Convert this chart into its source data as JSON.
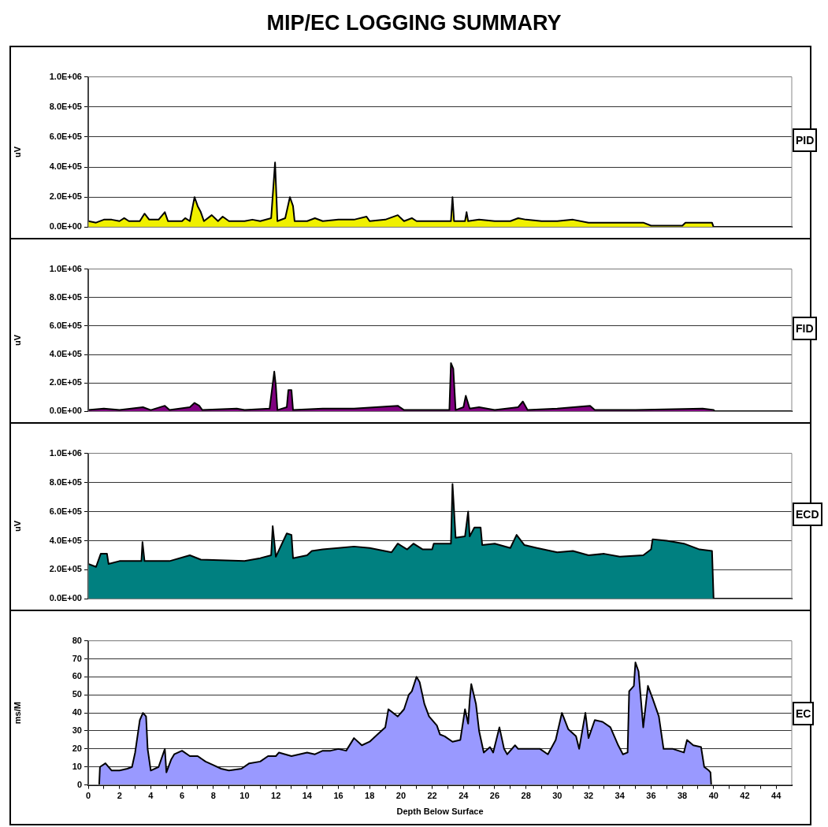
{
  "chart_data": [
    {
      "type": "area",
      "title": "MIP/EC LOGGING SUMMARY",
      "ylabel": "uV",
      "annotations": [
        "PID"
      ],
      "color": "#f0f000",
      "legend": false,
      "grid": "y",
      "tick_labels": "y",
      "xlim": [
        0,
        45
      ],
      "xticks": [
        0,
        2,
        4,
        6,
        8,
        10,
        12,
        14,
        16,
        18,
        20,
        22,
        24,
        26,
        28,
        30,
        32,
        34,
        36,
        38,
        40,
        42,
        44
      ],
      "ylim": [
        0,
        1000000
      ],
      "yticks": [
        {
          "value": 0,
          "label": "0.0E+00"
        },
        {
          "value": 200000,
          "label": "2.0E+05"
        },
        {
          "value": 400000,
          "label": "4.0E+05"
        },
        {
          "value": 600000,
          "label": "6.0E+05"
        },
        {
          "value": 800000,
          "label": "8.0E+05"
        },
        {
          "value": 1000000,
          "label": "1.0E+06"
        }
      ],
      "x": [
        0,
        0.5,
        1,
        1.5,
        2,
        2.3,
        2.6,
        3.3,
        3.6,
        3.9,
        4.5,
        4.9,
        5.1,
        6,
        6.2,
        6.5,
        6.8,
        7,
        7.2,
        7.4,
        7.9,
        8.3,
        8.6,
        9,
        10,
        10.5,
        11,
        11.7,
        11.95,
        12.1,
        12.6,
        12.9,
        13.1,
        13.2,
        14,
        14.5,
        15,
        16,
        17,
        17.8,
        18,
        19,
        19.8,
        20.2,
        20.7,
        21,
        22,
        23.2,
        23.3,
        23.4,
        24.1,
        24.2,
        24.3,
        25,
        26,
        27,
        27.5,
        28,
        29,
        30,
        31,
        32,
        33,
        35.5,
        36,
        38,
        38.2,
        39.9,
        40
      ],
      "values": [
        40000,
        30000,
        50000,
        50000,
        40000,
        60000,
        40000,
        40000,
        90000,
        50000,
        50000,
        100000,
        40000,
        40000,
        60000,
        40000,
        200000,
        140000,
        100000,
        40000,
        80000,
        40000,
        70000,
        40000,
        40000,
        50000,
        40000,
        60000,
        430000,
        40000,
        60000,
        200000,
        140000,
        40000,
        40000,
        60000,
        40000,
        50000,
        50000,
        70000,
        40000,
        50000,
        80000,
        40000,
        60000,
        40000,
        40000,
        40000,
        200000,
        40000,
        40000,
        100000,
        40000,
        50000,
        40000,
        40000,
        60000,
        50000,
        40000,
        40000,
        50000,
        30000,
        30000,
        30000,
        10000,
        10000,
        30000,
        30000,
        0
      ]
    },
    {
      "type": "area",
      "ylabel": "uV",
      "annotations": [
        "FID"
      ],
      "color": "#800080",
      "legend": false,
      "grid": "y",
      "tick_labels": "y",
      "xlim": [
        0,
        45
      ],
      "xticks": [
        0,
        2,
        4,
        6,
        8,
        10,
        12,
        14,
        16,
        18,
        20,
        22,
        24,
        26,
        28,
        30,
        32,
        34,
        36,
        38,
        40,
        42,
        44
      ],
      "ylim": [
        0,
        1000000
      ],
      "yticks": [
        {
          "value": 0,
          "label": "0.0E+00"
        },
        {
          "value": 200000,
          "label": "2.0E+05"
        },
        {
          "value": 400000,
          "label": "4.0E+05"
        },
        {
          "value": 600000,
          "label": "6.0E+05"
        },
        {
          "value": 800000,
          "label": "8.0E+05"
        },
        {
          "value": 1000000,
          "label": "1.0E+06"
        }
      ],
      "x": [
        0,
        1,
        2,
        3.5,
        4,
        4.9,
        5.2,
        6.5,
        6.8,
        7.1,
        7.3,
        9.5,
        10,
        11.6,
        11.9,
        12,
        12.1,
        12.7,
        12.8,
        13,
        13.1,
        15,
        17,
        19.8,
        20.2,
        23.1,
        23.2,
        23.35,
        23.5,
        24,
        24.15,
        24.4,
        25,
        26,
        27.5,
        27.8,
        28.1,
        30,
        32.1,
        32.4,
        35,
        39.3,
        40,
        40.1
      ],
      "values": [
        10000,
        20000,
        10000,
        30000,
        10000,
        40000,
        10000,
        30000,
        60000,
        40000,
        10000,
        20000,
        10000,
        20000,
        280000,
        180000,
        10000,
        30000,
        150000,
        150000,
        10000,
        20000,
        20000,
        40000,
        10000,
        10000,
        340000,
        300000,
        10000,
        30000,
        110000,
        20000,
        30000,
        10000,
        30000,
        70000,
        10000,
        20000,
        40000,
        10000,
        10000,
        20000,
        10000,
        0
      ]
    },
    {
      "type": "area",
      "ylabel": "uV",
      "annotations": [
        "ECD"
      ],
      "color": "#008080",
      "legend": false,
      "grid": "y",
      "tick_labels": "y",
      "xlim": [
        0,
        45
      ],
      "xticks": [
        0,
        2,
        4,
        6,
        8,
        10,
        12,
        14,
        16,
        18,
        20,
        22,
        24,
        26,
        28,
        30,
        32,
        34,
        36,
        38,
        40,
        42,
        44
      ],
      "ylim": [
        0,
        1000000
      ],
      "yticks": [
        {
          "value": 0,
          "label": "0.0E+00"
        },
        {
          "value": 200000,
          "label": "2.0E+05"
        },
        {
          "value": 400000,
          "label": "4.0E+05"
        },
        {
          "value": 600000,
          "label": "6.0E+05"
        },
        {
          "value": 800000,
          "label": "8.0E+05"
        },
        {
          "value": 1000000,
          "label": "1.0E+06"
        }
      ],
      "x": [
        0,
        0.5,
        0.8,
        1.2,
        1.3,
        2,
        3.4,
        3.47,
        3.6,
        5.2,
        6.5,
        7.2,
        10,
        11,
        11.7,
        11.8,
        12,
        12.7,
        13,
        13.1,
        14,
        14.3,
        15,
        16,
        17,
        18,
        19.4,
        19.8,
        20.4,
        20.8,
        21.4,
        22,
        22.1,
        23.2,
        23.3,
        23.5,
        24.1,
        24.3,
        24.4,
        24.7,
        25.1,
        25.2,
        26,
        27,
        27.4,
        27.9,
        28.7,
        30,
        31,
        32,
        33,
        34,
        35.5,
        36,
        36.1,
        37,
        38.1,
        39.1,
        39.9,
        40
      ],
      "values": [
        240000,
        220000,
        310000,
        310000,
        240000,
        260000,
        260000,
        390000,
        260000,
        260000,
        300000,
        270000,
        260000,
        280000,
        300000,
        500000,
        290000,
        450000,
        440000,
        280000,
        300000,
        330000,
        340000,
        350000,
        360000,
        350000,
        320000,
        380000,
        340000,
        380000,
        340000,
        340000,
        380000,
        380000,
        790000,
        420000,
        430000,
        600000,
        430000,
        490000,
        490000,
        370000,
        380000,
        350000,
        440000,
        370000,
        350000,
        320000,
        330000,
        300000,
        310000,
        290000,
        300000,
        340000,
        410000,
        400000,
        380000,
        340000,
        330000,
        0
      ]
    },
    {
      "type": "area",
      "ylabel": "ms/M",
      "xlabel": "Depth Below Surface",
      "annotations": [
        "EC"
      ],
      "color": "#9999ff",
      "legend": false,
      "grid": "y",
      "xlim": [
        0,
        45
      ],
      "xticks": [
        0,
        {
          "value": 1,
          "label": null
        },
        2,
        {
          "value": 3,
          "label": null
        },
        4,
        {
          "value": 5,
          "label": null
        },
        6,
        {
          "value": 7,
          "label": null
        },
        8,
        {
          "value": 9,
          "label": null
        },
        10,
        {
          "value": 11,
          "label": null
        },
        12,
        {
          "value": 13,
          "label": null
        },
        14,
        {
          "value": 15,
          "label": null
        },
        16,
        {
          "value": 17,
          "label": null
        },
        18,
        {
          "value": 19,
          "label": null
        },
        20,
        {
          "value": 21,
          "label": null
        },
        22,
        {
          "value": 23,
          "label": null
        },
        24,
        {
          "value": 25,
          "label": null
        },
        26,
        {
          "value": 27,
          "label": null
        },
        28,
        {
          "value": 29,
          "label": null
        },
        30,
        {
          "value": 31,
          "label": null
        },
        32,
        {
          "value": 33,
          "label": null
        },
        34,
        {
          "value": 35,
          "label": null
        },
        36,
        {
          "value": 37,
          "label": null
        },
        38,
        {
          "value": 39,
          "label": null
        },
        40,
        {
          "value": 41,
          "label": null
        },
        42,
        {
          "value": 43,
          "label": null
        },
        44
      ],
      "ylim": [
        0,
        80
      ],
      "yticks": [
        0,
        10,
        20,
        30,
        40,
        50,
        60,
        70,
        80
      ],
      "x": [
        0.7,
        0.75,
        1.1,
        1.5,
        2,
        2.5,
        2.8,
        3,
        3.3,
        3.5,
        3.7,
        3.8,
        4,
        4.5,
        4.9,
        5,
        5.3,
        5.5,
        6,
        6.5,
        7,
        7.5,
        8,
        8.5,
        9,
        9.8,
        10.3,
        11,
        11.5,
        12,
        12.2,
        13,
        14,
        14.5,
        15,
        15.5,
        16,
        16.5,
        17,
        17.5,
        18,
        18.5,
        19,
        19.2,
        19.5,
        19.8,
        20.2,
        20.5,
        20.7,
        21,
        21.2,
        21.5,
        21.8,
        22.3,
        22.5,
        22.8,
        23.3,
        23.8,
        24.1,
        24.3,
        24.4,
        24.5,
        24.8,
        25,
        25.3,
        25.7,
        25.9,
        26.3,
        26.6,
        26.8,
        27.3,
        27.5,
        28.2,
        28.9,
        29.4,
        29.9,
        30.3,
        30.7,
        31.2,
        31.4,
        31.8,
        32,
        32.4,
        32.9,
        33.4,
        33.9,
        34.2,
        34.5,
        34.6,
        34.9,
        35,
        35.2,
        35.5,
        35.8,
        36.1,
        36.5,
        36.8,
        37.4,
        38.1,
        38.3,
        38.7,
        39.2,
        39.4,
        39.7,
        39.8,
        39.85
      ],
      "values": [
        0,
        10,
        12,
        8,
        8,
        9,
        10,
        18,
        36,
        40,
        38,
        20,
        8,
        10,
        20,
        7,
        14,
        17,
        19,
        16,
        16,
        13,
        11,
        9,
        8,
        9,
        12,
        13,
        16,
        16,
        18,
        16,
        18,
        17,
        19,
        19,
        20,
        19,
        26,
        22,
        24,
        28,
        32,
        42,
        40,
        38,
        42,
        50,
        52,
        60,
        57,
        45,
        38,
        33,
        28,
        27,
        24,
        25,
        42,
        34,
        47,
        56,
        45,
        30,
        18,
        21,
        18,
        32,
        20,
        17,
        22,
        20,
        20,
        20,
        17,
        25,
        40,
        31,
        27,
        20,
        40,
        26,
        36,
        35,
        32,
        22,
        17,
        18,
        52,
        55,
        68,
        63,
        32,
        55,
        48,
        38,
        20,
        20,
        18,
        25,
        22,
        21,
        10,
        8,
        7,
        0
      ]
    }
  ]
}
